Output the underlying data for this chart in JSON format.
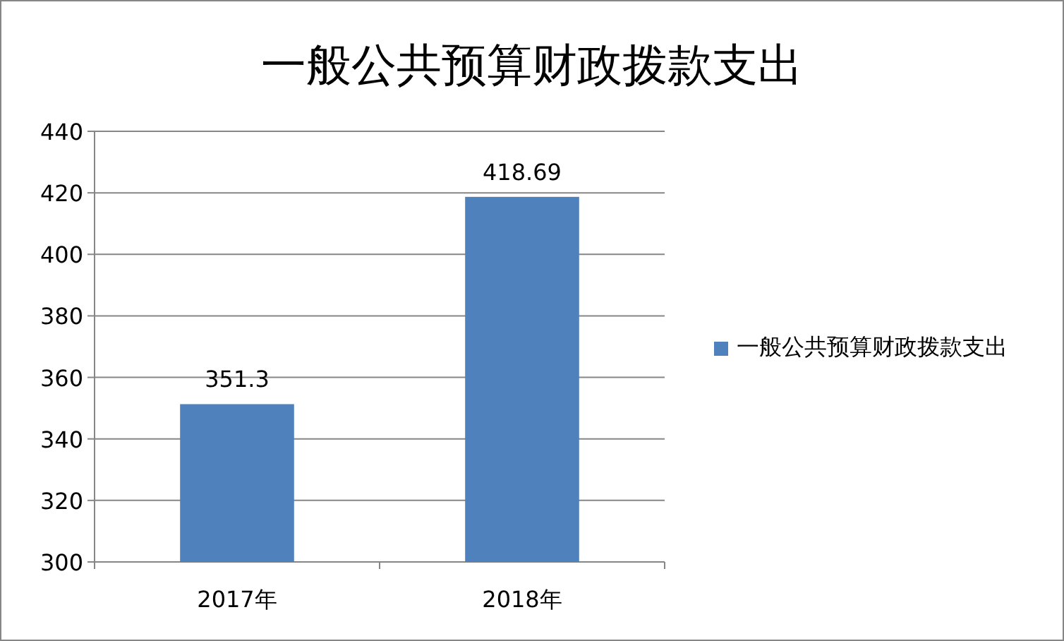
{
  "chart_data": {
    "type": "bar",
    "title": "一般公共预算财政拨款支出",
    "categories": [
      "2017年",
      "2018年"
    ],
    "series": [
      {
        "name": "一般公共预算财政拨款支出",
        "color": "#4f81bd",
        "values": [
          351.3,
          418.69
        ]
      }
    ],
    "ylim": [
      300,
      440
    ],
    "yticks": [
      300,
      320,
      340,
      360,
      380,
      400,
      420,
      440
    ],
    "grid": "y",
    "legend": "right",
    "data_labels": true
  }
}
